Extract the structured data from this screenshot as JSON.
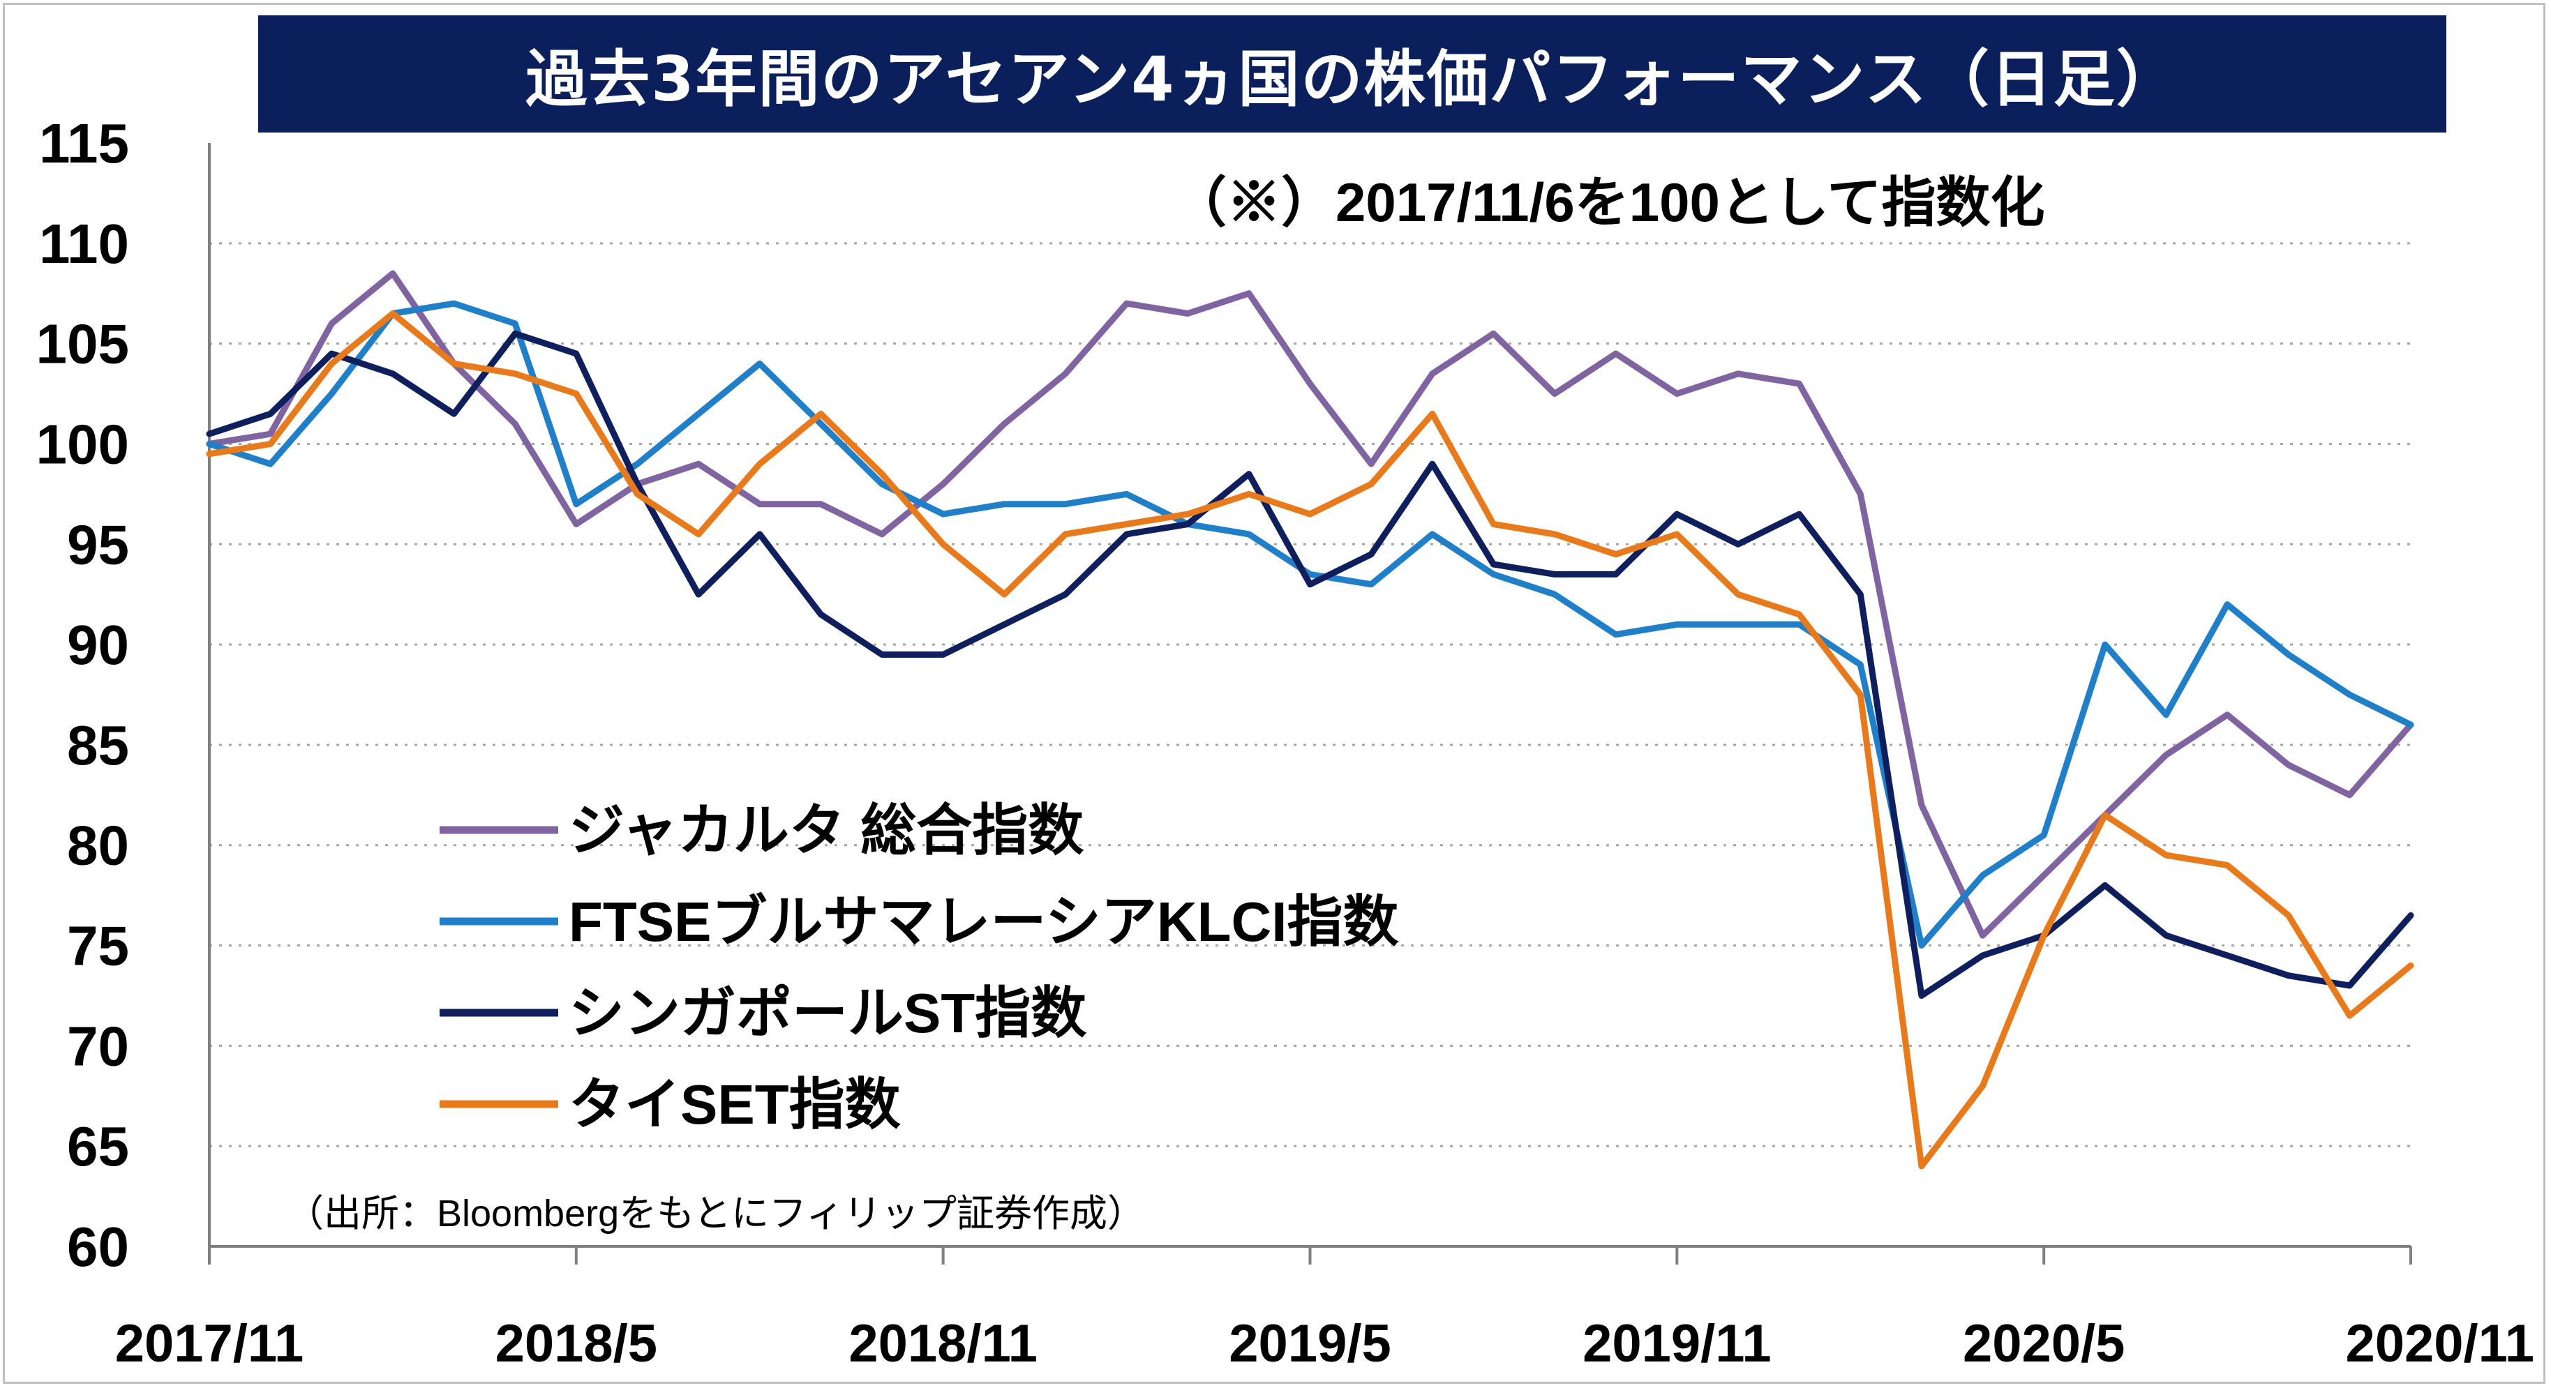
{
  "chart_data": {
    "type": "line",
    "title": "過去3年間のアセアン4ヵ国の株価パフォーマンス（日足）",
    "subtitle": "（※）2017/11/6を100として指数化",
    "source": "（出所：Bloombergをもとにフィリップ証券作成）",
    "ylim": [
      60,
      115
    ],
    "yticks": [
      "115",
      "110",
      "105",
      "100",
      "95",
      "90",
      "85",
      "80",
      "75",
      "70",
      "65",
      "60"
    ],
    "x_range": [
      "2017-11",
      "2020-11"
    ],
    "xticks": [
      "2017/11",
      "2018/5",
      "2018/11",
      "2019/5",
      "2019/11",
      "2020/5",
      "2020/11"
    ],
    "grid": "horizontal dotted",
    "legend_placement": "center-left",
    "x": [
      "2017-11",
      "2017-12",
      "2018-01",
      "2018-02",
      "2018-03",
      "2018-04",
      "2018-05",
      "2018-06",
      "2018-07",
      "2018-08",
      "2018-09",
      "2018-10",
      "2018-11",
      "2018-12",
      "2019-01",
      "2019-02",
      "2019-03",
      "2019-04",
      "2019-05",
      "2019-06",
      "2019-07",
      "2019-08",
      "2019-09",
      "2019-10",
      "2019-11",
      "2019-12",
      "2020-01",
      "2020-02",
      "2020-03",
      "2020-04",
      "2020-05",
      "2020-06",
      "2020-07",
      "2020-08",
      "2020-09",
      "2020-10",
      "2020-11"
    ],
    "series": [
      {
        "name": "ジャカルタ 総合指数",
        "color": "#8064a2",
        "values": [
          100,
          100.5,
          106,
          108.5,
          104,
          101,
          96,
          98,
          99,
          97,
          97,
          95.5,
          98,
          101,
          103.5,
          107,
          106.5,
          107.5,
          103,
          99,
          103.5,
          105.5,
          102.5,
          104.5,
          102.5,
          103.5,
          103,
          97.5,
          82,
          75.5,
          78.5,
          81.5,
          84.5,
          86.5,
          84,
          82.5,
          86
        ]
      },
      {
        "name": "FTSEブルサマレーシアKLCI指数",
        "color": "#1f7fc8",
        "values": [
          100,
          99,
          102.5,
          106.5,
          107,
          106,
          97,
          99,
          101.5,
          104,
          101,
          98,
          96.5,
          97,
          97,
          97.5,
          96,
          95.5,
          93.5,
          93,
          95.5,
          93.5,
          92.5,
          90.5,
          91,
          91,
          91,
          89,
          75,
          78.5,
          80.5,
          90,
          86.5,
          92,
          89.5,
          87.5,
          86
        ]
      },
      {
        "name": "シンガポールST指数",
        "color": "#0f1f5e",
        "values": [
          100.5,
          101.5,
          104.5,
          103.5,
          101.5,
          105.5,
          104.5,
          98,
          92.5,
          95.5,
          91.5,
          89.5,
          89.5,
          91,
          92.5,
          95.5,
          96,
          98.5,
          93,
          94.5,
          99,
          94,
          93.5,
          93.5,
          96.5,
          95,
          96.5,
          92.5,
          72.5,
          74.5,
          75.5,
          78,
          75.5,
          74.5,
          73.5,
          73,
          76.5
        ]
      },
      {
        "name": "タイSET指数",
        "color": "#e87a1c",
        "values": [
          99.5,
          100,
          104,
          106.5,
          104,
          103.5,
          102.5,
          97.5,
          95.5,
          99,
          101.5,
          98.5,
          95,
          92.5,
          95.5,
          96,
          96.5,
          97.5,
          96.5,
          98,
          101.5,
          96,
          95.5,
          94.5,
          95.5,
          92.5,
          91.5,
          87.5,
          64,
          68,
          75.5,
          81.5,
          79.5,
          79,
          76.5,
          71.5,
          74
        ]
      }
    ]
  }
}
